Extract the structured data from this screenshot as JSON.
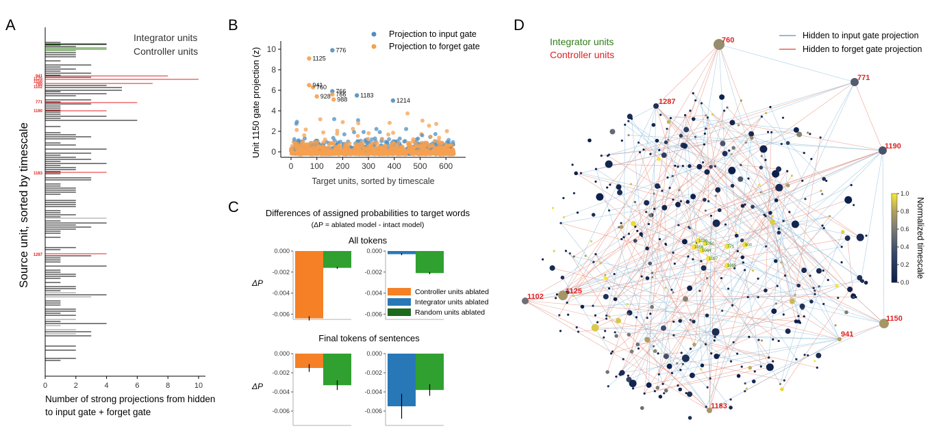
{
  "panel_labels": {
    "a": "A",
    "b": "B",
    "c": "C",
    "d": "D"
  },
  "panel_a": {
    "ylabel": "Source unit, sorted by timescale",
    "xlabel_line1": "Number of strong projections from hidden",
    "xlabel_line2": "to input gate + forget gate",
    "legend_integrator": "Integrator units",
    "legend_controller": "Controller units",
    "xticks": [
      "0",
      "2",
      "4",
      "6",
      "8",
      "10"
    ],
    "controller_tags": [
      "941",
      "1125",
      "1150",
      "760",
      "1102",
      "771",
      "1190",
      "1183",
      "1287"
    ],
    "colors": {
      "integrator": "#2e7d16",
      "controller": "#e02020",
      "other": "#000000"
    }
  },
  "panel_b": {
    "ylabel": "Unit 1150 gate projection (z)",
    "xlabel": "Target units, sorted by timescale",
    "legend_input": "Projection to input gate",
    "legend_forget": "Projection to forget gate",
    "xticks": [
      "0",
      "100",
      "200",
      "300",
      "400",
      "500",
      "600"
    ],
    "yticks": [
      "0",
      "2",
      "4",
      "6",
      "8",
      "10"
    ],
    "colors": {
      "input": "#4f8fc0",
      "forget": "#f5a050"
    },
    "chart_data": {
      "type": "scatter",
      "title": "",
      "xlabel": "Target units, sorted by timescale",
      "ylabel": "Unit 1150 gate projection (z)",
      "xlim": [
        -20,
        650
      ],
      "ylim": [
        -0.5,
        10.5
      ],
      "series": [
        {
          "name": "Projection to input gate",
          "labeled_points": [
            {
              "label": "776",
              "x": 160,
              "y": 9.9
            },
            {
              "label": "1183",
              "x": 255,
              "y": 5.5
            },
            {
              "label": "766",
              "x": 160,
              "y": 5.9
            },
            {
              "label": "1214",
              "x": 395,
              "y": 5.0
            }
          ]
        },
        {
          "name": "Projection to forget gate",
          "labeled_points": [
            {
              "label": "1125",
              "x": 70,
              "y": 9.1
            },
            {
              "label": "941",
              "x": 70,
              "y": 6.5
            },
            {
              "label": "760",
              "x": 85,
              "y": 6.3
            },
            {
              "label": "766",
              "x": 160,
              "y": 5.6
            },
            {
              "label": "928",
              "x": 100,
              "y": 5.4
            },
            {
              "label": "988",
              "x": 165,
              "y": 5.1
            }
          ]
        }
      ]
    }
  },
  "panel_c": {
    "title_line1": "Differences of assigned probabilities to target words",
    "title_line2": "(ΔP = ablated model - intact model)",
    "sub_all": "All tokens",
    "sub_final": "Final tokens of sentences",
    "ylabel": "ΔP",
    "legend": [
      "Controller units ablated",
      "Integrator units ablated",
      "Random units ablated"
    ],
    "colors": {
      "controller": "#f58025",
      "integrator": "#2878b8",
      "random": "#30a030",
      "random_legend": "#1d6a1d"
    },
    "yticks_top": [
      "0.000",
      "-0.002",
      "-0.004",
      "-0.006"
    ],
    "yticks_bottom": [
      "0.000",
      "-0.002",
      "-0.004",
      "-0.006"
    ],
    "chart_data": [
      {
        "type": "bar",
        "title": "All tokens",
        "categories": [
          "Controller units ablated",
          "Random units ablated"
        ],
        "values": [
          -0.0064,
          -0.0016
        ],
        "errors": [
          0.0002,
          0.0001
        ],
        "ylim": [
          -0.0066,
          0.0
        ]
      },
      {
        "type": "bar",
        "title": "All tokens",
        "categories": [
          "Integrator units ablated",
          "Random units ablated"
        ],
        "values": [
          -0.0003,
          -0.0021
        ],
        "errors": [
          0.0001,
          0.0001
        ],
        "ylim": [
          -0.0066,
          0.0
        ]
      },
      {
        "type": "bar",
        "title": "Final tokens of sentences",
        "categories": [
          "Controller units ablated",
          "Random units ablated"
        ],
        "values": [
          -0.0015,
          -0.0033
        ],
        "errors": [
          0.0004,
          0.0005
        ],
        "ylim": [
          -0.007,
          0.0
        ]
      },
      {
        "type": "bar",
        "title": "Final tokens of sentences",
        "categories": [
          "Integrator units ablated",
          "Random units ablated"
        ],
        "values": [
          -0.0055,
          -0.0038
        ],
        "errors": [
          0.0013,
          0.0006
        ],
        "ylim": [
          -0.007,
          0.0
        ]
      }
    ]
  },
  "panel_d": {
    "legend_integrator": "Integrator units",
    "legend_controller": "Controller units",
    "legend_input": "Hidden to input gate projection",
    "legend_forget": "Hidden to forget gate projection",
    "colorbar_label": "Normalized timescale",
    "colorbar_ticks": [
      "1.0",
      "0.8",
      "0.6",
      "0.4",
      "0.2",
      "0.0"
    ],
    "controller_nodes": [
      "760",
      "771",
      "1287",
      "1190",
      "1102",
      "1125",
      "1150",
      "941",
      "1183"
    ],
    "integrator_tags": [
      "1030",
      "1050",
      "1056",
      "1064",
      "771",
      "900",
      "1067",
      "1095"
    ],
    "colors": {
      "input": "#8dbcd8",
      "forget": "#e88a78",
      "integrator": "#2e7d16",
      "controller": "#e02020"
    }
  }
}
